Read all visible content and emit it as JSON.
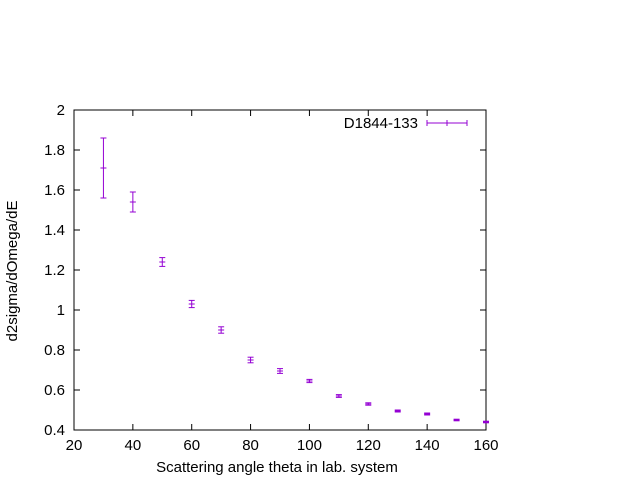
{
  "chart_data": {
    "type": "scatter",
    "xlabel": "Scattering angle theta in lab. system",
    "ylabel": "d2sigma/dOmega/dE",
    "xlim": [
      20,
      160
    ],
    "ylim": [
      0.4,
      2.0
    ],
    "x_ticks": [
      "20",
      "40",
      "60",
      "80",
      "100",
      "120",
      "140",
      "160"
    ],
    "y_ticks": [
      "0.4",
      "0.6",
      "0.8",
      "1",
      "1.2",
      "1.4",
      "1.6",
      "1.8",
      "2"
    ],
    "x_tick_values": [
      20,
      40,
      60,
      80,
      100,
      120,
      140,
      160
    ],
    "y_tick_values": [
      0.4,
      0.6,
      0.8,
      1.0,
      1.2,
      1.4,
      1.6,
      1.8,
      2.0
    ],
    "grid": false,
    "legend_position": "top-right",
    "series": [
      {
        "name": "D1844-133",
        "color": "#9400d3",
        "errorbars": true,
        "points": [
          {
            "x": 30,
            "y": 1.71,
            "yerr": 0.15
          },
          {
            "x": 40,
            "y": 1.54,
            "yerr": 0.05
          },
          {
            "x": 50,
            "y": 1.24,
            "yerr": 0.022
          },
          {
            "x": 60,
            "y": 1.03,
            "yerr": 0.018
          },
          {
            "x": 70,
            "y": 0.9,
            "yerr": 0.016
          },
          {
            "x": 80,
            "y": 0.75,
            "yerr": 0.014
          },
          {
            "x": 90,
            "y": 0.695,
            "yerr": 0.012
          },
          {
            "x": 100,
            "y": 0.645,
            "yerr": 0.008
          },
          {
            "x": 110,
            "y": 0.57,
            "yerr": 0.007
          },
          {
            "x": 120,
            "y": 0.53,
            "yerr": 0.006
          },
          {
            "x": 130,
            "y": 0.495,
            "yerr": 0.005
          },
          {
            "x": 140,
            "y": 0.48,
            "yerr": 0.005
          },
          {
            "x": 150,
            "y": 0.45,
            "yerr": 0.004
          },
          {
            "x": 160,
            "y": 0.44,
            "yerr": 0.004
          }
        ]
      }
    ]
  }
}
